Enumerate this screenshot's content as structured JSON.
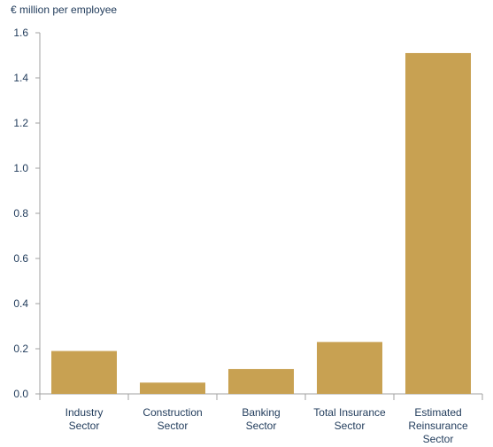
{
  "chart_data": {
    "type": "bar",
    "ylabel": "€ million per employee",
    "categories": [
      [
        "Industry",
        "Sector"
      ],
      [
        "Construction",
        "Sector"
      ],
      [
        "Banking",
        "Sector"
      ],
      [
        "Total Insurance",
        "Sector"
      ],
      [
        "Estimated",
        "Reinsurance",
        "Sector"
      ]
    ],
    "values": [
      0.19,
      0.05,
      0.11,
      0.23,
      1.51
    ],
    "ylim": [
      0,
      1.6
    ],
    "yticks": [
      "0.0",
      "0.2",
      "0.4",
      "0.6",
      "0.8",
      "1.0",
      "1.2",
      "1.4",
      "1.6"
    ],
    "bar_color": "#c8a152",
    "axis_color": "#a0a0a0",
    "grid": false
  }
}
